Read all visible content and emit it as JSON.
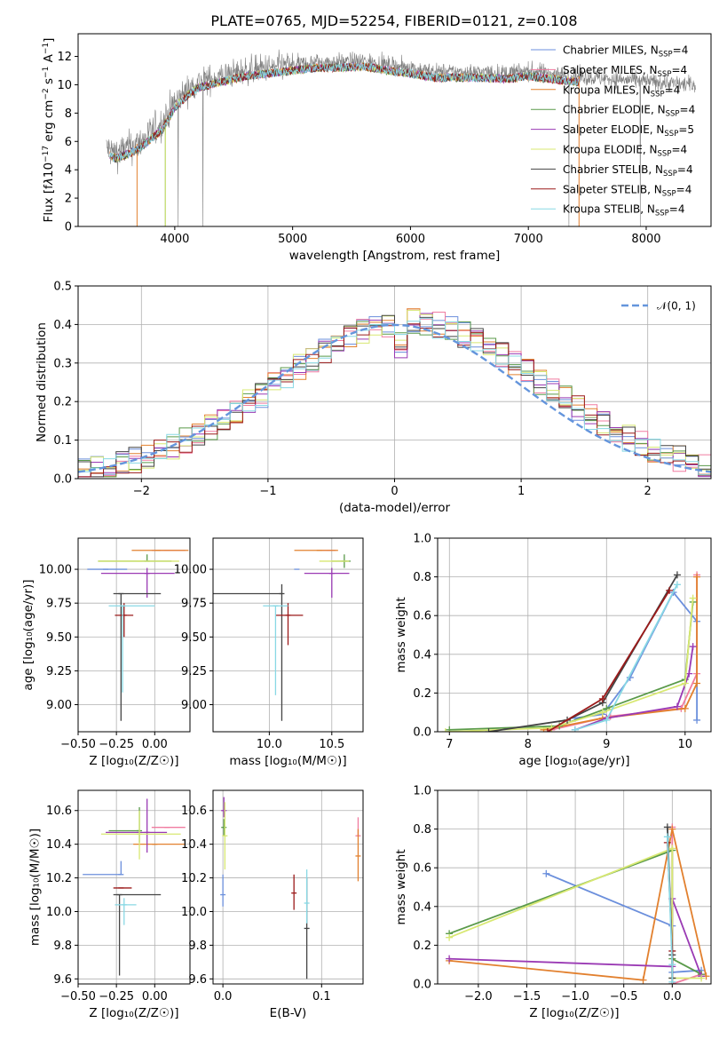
{
  "figure": {
    "title": "PLATE=0765, MJD=52254, FIBERID=0121, z=0.108"
  },
  "colors": {
    "Chabrier MILES": "#6b8fdc",
    "Salpeter MILES": "#f07ca0",
    "Kroupa MILES": "#e2802e",
    "Chabrier ELODIE": "#5a9a4a",
    "Salpeter ELODIE": "#9a3ab4",
    "Kroupa ELODIE": "#d8e872",
    "Chabrier STELIB": "#444444",
    "Salpeter STELIB": "#9b1a1a",
    "Kroupa STELIB": "#88d8e4",
    "data": "#808080",
    "normal": "#6495dc",
    "grid": "#b0b0b0"
  },
  "chart_data": [
    {
      "id": "spectrum",
      "type": "line",
      "title": "PLATE=0765, MJD=52254, FIBERID=0121, z=0.108",
      "xlabel": "wavelength [Angstrom, rest frame]",
      "ylabel_html": "Flux [f<tspan font-style='italic'>λ</tspan>10<tspan baseline-shift='super' font-size='9'>−17</tspan> erg cm<tspan baseline-shift='super' font-size='9'>−2</tspan> s<tspan baseline-shift='super' font-size='9'>−1</tspan> A<tspan baseline-shift='super' font-size='9'>−1</tspan>]",
      "xlim": [
        3180,
        8550
      ],
      "ylim": [
        0,
        13.6
      ],
      "xticks": [
        4000,
        5000,
        6000,
        7000,
        8000
      ],
      "yticks": [
        0,
        2,
        4,
        6,
        8,
        10,
        12
      ],
      "grid": false,
      "legend_placement": "right",
      "legend": [
        {
          "name": "Chabrier MILES",
          "nssp": "4"
        },
        {
          "name": "Salpeter MILES",
          "nssp": "4"
        },
        {
          "name": "Kroupa MILES",
          "nssp": "4"
        },
        {
          "name": "Chabrier ELODIE",
          "nssp": "4"
        },
        {
          "name": "Salpeter ELODIE",
          "nssp": "5"
        },
        {
          "name": "Kroupa ELODIE",
          "nssp": "4"
        },
        {
          "name": "Chabrier STELIB",
          "nssp": "4"
        },
        {
          "name": "Salpeter STELIB",
          "nssp": "4"
        },
        {
          "name": "Kroupa STELIB",
          "nssp": "4"
        }
      ],
      "continuum": {
        "x": [
          3420,
          3500,
          3600,
          3700,
          3800,
          3900,
          4000,
          4100,
          4200,
          4300,
          4400,
          4500,
          4600,
          4800,
          5000,
          5200,
          5400,
          5600,
          5800,
          6000,
          6200,
          6400,
          6600,
          6800,
          7000,
          7200,
          7400
        ],
        "y": [
          5.5,
          5.2,
          5.5,
          5.9,
          6.6,
          7.3,
          8.8,
          9.6,
          10.2,
          10.4,
          10.6,
          10.8,
          11.0,
          11.2,
          11.4,
          11.6,
          11.6,
          11.7,
          11.4,
          11.2,
          10.9,
          10.9,
          10.9,
          10.8,
          11.0,
          10.8,
          10.6
        ]
      },
      "data_range": [
        3420,
        8420
      ],
      "model_range": [
        3450,
        7430
      ]
    },
    {
      "id": "residuals",
      "type": "histogram",
      "xlabel": "(data-model)/error",
      "ylabel": "Normed distribution",
      "xlim": [
        -2.5,
        2.5
      ],
      "ylim": [
        0,
        0.5
      ],
      "xticks": [
        -2,
        -1,
        0,
        1,
        2
      ],
      "yticks": [
        0.0,
        0.1,
        0.2,
        0.3,
        0.4,
        0.5
      ],
      "grid": true,
      "legend_placement": "top-right",
      "legend_label": "𝒩(0, 1)",
      "bin_width": 0.1,
      "bin_start": -2.5
    },
    {
      "id": "age-Z",
      "type": "scatter",
      "xlabel": "Z [log₁₀(Z/Z☉)]",
      "ylabel": "age  [log₁₀(age/yr)]",
      "xlim": [
        -0.5,
        0.23
      ],
      "ylim": [
        8.8,
        10.23
      ],
      "xticks": [
        -0.5,
        -0.25,
        0.0
      ],
      "yticks": [
        9.0,
        9.25,
        9.5,
        9.75,
        10.0
      ],
      "grid": true,
      "points": [
        {
          "series": "Chabrier MILES",
          "x": -0.32,
          "xerr": [
            0.12,
            0.14
          ],
          "y": 10.0,
          "yerr": [
            0.0,
            0.0
          ]
        },
        {
          "series": "Salpeter MILES",
          "x": 0.08,
          "xerr": [
            0.1,
            0.12
          ],
          "y": 10.14,
          "yerr": [
            0.0,
            0.0
          ]
        },
        {
          "series": "Kroupa MILES",
          "x": 0.02,
          "xerr": [
            0.17,
            0.2
          ],
          "y": 10.14,
          "yerr": [
            0.0,
            0.0
          ]
        },
        {
          "series": "Chabrier ELODIE",
          "x": -0.05,
          "xerr": [
            0.32,
            0.16
          ],
          "y": 10.06,
          "yerr": [
            0.0,
            0.05
          ]
        },
        {
          "series": "Salpeter ELODIE",
          "x": -0.05,
          "xerr": [
            0.3,
            0.18
          ],
          "y": 9.97,
          "yerr": [
            0.18,
            0.04
          ]
        },
        {
          "series": "Kroupa ELODIE",
          "x": -0.1,
          "xerr": [
            0.27,
            0.26
          ],
          "y": 10.06,
          "yerr": [
            0.0,
            0.0
          ]
        },
        {
          "series": "Chabrier STELIB",
          "x": -0.22,
          "xerr": [
            0.05,
            0.26
          ],
          "y": 9.82,
          "yerr": [
            0.94,
            0.0
          ]
        },
        {
          "series": "Salpeter STELIB",
          "x": -0.2,
          "xerr": [
            0.06,
            0.06
          ],
          "y": 9.66,
          "yerr": [
            0.16,
            0.09
          ]
        },
        {
          "series": "Kroupa STELIB",
          "x": -0.21,
          "xerr": [
            0.09,
            0.21
          ],
          "y": 9.73,
          "yerr": [
            0.64,
            0.0
          ]
        }
      ]
    },
    {
      "id": "age-mass",
      "type": "scatter",
      "xlabel": "mass [log₁₀(M/M☉)]",
      "ylabel": "",
      "xlim": [
        9.55,
        10.75
      ],
      "ylim": [
        8.8,
        10.23
      ],
      "xticks": [
        10.0,
        10.5
      ],
      "yticks": [
        9.0,
        9.25,
        9.5,
        9.75,
        10.0
      ],
      "grid": true,
      "points": [
        {
          "series": "Chabrier MILES",
          "x": 10.22,
          "xerr": [
            0.0,
            0.0
          ],
          "y": 10.0,
          "yerr": [
            0.0,
            0.0
          ]
        },
        {
          "series": "Salpeter MILES",
          "x": 10.48,
          "xerr": [
            0.06,
            0.05
          ],
          "y": 10.14,
          "yerr": [
            0.0,
            0.0
          ]
        },
        {
          "series": "Kroupa MILES",
          "x": 10.4,
          "xerr": [
            0.2,
            0.15
          ],
          "y": 10.14,
          "yerr": [
            0.0,
            0.0
          ]
        },
        {
          "series": "Chabrier ELODIE",
          "x": 10.6,
          "xerr": [
            0.1,
            0.05
          ],
          "y": 10.06,
          "yerr": [
            0.05,
            0.05
          ]
        },
        {
          "series": "Salpeter ELODIE",
          "x": 10.5,
          "xerr": [
            0.22,
            0.14
          ],
          "y": 9.97,
          "yerr": [
            0.18,
            0.04
          ]
        },
        {
          "series": "Kroupa ELODIE",
          "x": 10.52,
          "xerr": [
            0.12,
            0.12
          ],
          "y": 10.06,
          "yerr": [
            0.0,
            0.0
          ]
        },
        {
          "series": "Chabrier STELIB",
          "x": 10.1,
          "xerr": [
            0.6,
            0.0
          ],
          "y": 9.82,
          "yerr": [
            0.94,
            0.07
          ]
        },
        {
          "series": "Salpeter STELIB",
          "x": 10.15,
          "xerr": [
            0.1,
            0.12
          ],
          "y": 9.66,
          "yerr": [
            0.22,
            0.09
          ]
        },
        {
          "series": "Kroupa STELIB",
          "x": 10.05,
          "xerr": [
            0.1,
            0.1
          ],
          "y": 9.73,
          "yerr": [
            0.66,
            0.0
          ]
        }
      ]
    },
    {
      "id": "mass-weight-age",
      "type": "line",
      "xlabel": "age  [log₁₀(age/yr)]",
      "ylabel": "mass weight",
      "xlim": [
        6.85,
        10.33
      ],
      "ylim": [
        0,
        1.0
      ],
      "xticks": [
        7,
        8,
        9,
        10
      ],
      "yticks": [
        0.0,
        0.2,
        0.4,
        0.6,
        0.8,
        1.0
      ],
      "grid": true,
      "series": [
        {
          "name": "Chabrier MILES",
          "x": [
            8.6,
            8.95,
            9.3,
            9.85,
            10.15,
            10.15
          ],
          "y": [
            0.07,
            0.09,
            0.28,
            0.72,
            0.57,
            0.06
          ]
        },
        {
          "name": "Salpeter MILES",
          "x": [
            8.3,
            9.05,
            9.95,
            10.15,
            10.15
          ],
          "y": [
            0.01,
            0.08,
            0.12,
            0.3,
            0.81
          ]
        },
        {
          "name": "Kroupa MILES",
          "x": [
            8.2,
            8.95,
            10.0,
            10.15,
            10.15
          ],
          "y": [
            0.01,
            0.07,
            0.12,
            0.25,
            0.8
          ]
        },
        {
          "name": "Chabrier ELODIE",
          "x": [
            7.0,
            8.4,
            9.0,
            10.0,
            10.1
          ],
          "y": [
            0.01,
            0.03,
            0.12,
            0.27,
            0.67
          ]
        },
        {
          "name": "Salpeter ELODIE",
          "x": [
            8.6,
            9.0,
            9.9,
            10.05,
            10.1
          ],
          "y": [
            0.01,
            0.07,
            0.13,
            0.3,
            0.44
          ]
        },
        {
          "name": "Kroupa ELODIE",
          "x": [
            6.95,
            8.3,
            8.95,
            10.0,
            10.1
          ],
          "y": [
            0.0,
            0.02,
            0.1,
            0.25,
            0.69
          ]
        },
        {
          "name": "Chabrier STELIB",
          "x": [
            7.5,
            8.5,
            8.95,
            9.9
          ],
          "y": [
            0.0,
            0.06,
            0.15,
            0.81
          ]
        },
        {
          "name": "Salpeter STELIB",
          "x": [
            8.25,
            8.95,
            9.8
          ],
          "y": [
            0.0,
            0.17,
            0.73
          ]
        },
        {
          "name": "Kroupa STELIB",
          "x": [
            8.6,
            9.0,
            9.9
          ],
          "y": [
            0.01,
            0.06,
            0.76
          ]
        }
      ]
    },
    {
      "id": "mass-Z",
      "type": "scatter",
      "xlabel": "Z [log₁₀(Z/Z☉)]",
      "ylabel": "mass [log₁₀(M/M☉)]",
      "xlim": [
        -0.5,
        0.23
      ],
      "ylim": [
        9.57,
        10.72
      ],
      "xticks": [
        -0.5,
        -0.25,
        0.0
      ],
      "yticks": [
        9.6,
        9.8,
        10.0,
        10.2,
        10.4,
        10.6
      ],
      "grid": true,
      "points": [
        {
          "series": "Chabrier MILES",
          "x": -0.22,
          "xerr": [
            0.25,
            0.0
          ],
          "y": 10.22,
          "yerr": [
            0.0,
            0.08
          ]
        },
        {
          "series": "Salpeter MILES",
          "x": 0.08,
          "xerr": [
            0.1,
            0.12
          ],
          "y": 10.5,
          "yerr": [
            0.0,
            0.0
          ]
        },
        {
          "series": "Kroupa MILES",
          "x": 0.0,
          "xerr": [
            0.14,
            0.2
          ],
          "y": 10.4,
          "yerr": [
            0.0,
            0.0
          ]
        },
        {
          "series": "Chabrier ELODIE",
          "x": -0.1,
          "xerr": [
            0.2,
            0.0
          ],
          "y": 10.48,
          "yerr": [
            0.07,
            0.14
          ]
        },
        {
          "series": "Salpeter ELODIE",
          "x": -0.05,
          "xerr": [
            0.27,
            0.13
          ],
          "y": 10.47,
          "yerr": [
            0.12,
            0.2
          ]
        },
        {
          "series": "Kroupa ELODIE",
          "x": -0.1,
          "xerr": [
            0.25,
            0.27
          ],
          "y": 10.46,
          "yerr": [
            0.15,
            0.14
          ]
        },
        {
          "series": "Chabrier STELIB",
          "x": -0.23,
          "xerr": [
            0.04,
            0.27
          ],
          "y": 10.1,
          "yerr": [
            0.48,
            0.0
          ]
        },
        {
          "series": "Salpeter STELIB",
          "x": -0.22,
          "xerr": [
            0.05,
            0.07
          ],
          "y": 10.14,
          "yerr": [
            0.0,
            0.0
          ]
        },
        {
          "series": "Kroupa STELIB",
          "x": -0.2,
          "xerr": [
            0.06,
            0.08
          ],
          "y": 10.04,
          "yerr": [
            0.12,
            0.04
          ]
        }
      ]
    },
    {
      "id": "mass-EBV",
      "type": "scatter",
      "xlabel": "E(B-V)",
      "ylabel": "",
      "xlim": [
        -0.01,
        0.142
      ],
      "ylim": [
        9.57,
        10.72
      ],
      "xticks": [
        0.0,
        0.1
      ],
      "yticks": [
        9.6,
        9.8,
        10.0,
        10.2,
        10.4,
        10.6
      ],
      "grid": true,
      "points": [
        {
          "series": "Chabrier MILES",
          "x": 0.0,
          "xerr": [
            0.0,
            0.0
          ],
          "y": 10.1,
          "yerr": [
            0.07,
            0.12
          ]
        },
        {
          "series": "Salpeter MILES",
          "x": 0.137,
          "xerr": [
            0.0,
            0.0
          ],
          "y": 10.45,
          "yerr": [
            0.0,
            0.11
          ]
        },
        {
          "series": "Kroupa MILES",
          "x": 0.137,
          "xerr": [
            0.0,
            0.0
          ],
          "y": 10.33,
          "yerr": [
            0.15,
            0.16
          ]
        },
        {
          "series": "Chabrier ELODIE",
          "x": 0.001,
          "xerr": [
            0.0,
            0.0
          ],
          "y": 10.5,
          "yerr": [
            0.05,
            0.05
          ]
        },
        {
          "series": "Salpeter ELODIE",
          "x": 0.001,
          "xerr": [
            0.0,
            0.0
          ],
          "y": 10.6,
          "yerr": [
            0.04,
            0.08
          ]
        },
        {
          "series": "Kroupa ELODIE",
          "x": 0.002,
          "xerr": [
            0.0,
            0.0
          ],
          "y": 10.45,
          "yerr": [
            0.2,
            0.2
          ]
        },
        {
          "series": "Chabrier STELIB",
          "x": 0.085,
          "xerr": [
            0.0,
            0.0
          ],
          "y": 9.9,
          "yerr": [
            0.3,
            0.3
          ]
        },
        {
          "series": "Salpeter STELIB",
          "x": 0.072,
          "xerr": [
            0.0,
            0.0
          ],
          "y": 10.11,
          "yerr": [
            0.1,
            0.11
          ]
        },
        {
          "series": "Kroupa STELIB",
          "x": 0.085,
          "xerr": [
            0.0,
            0.0
          ],
          "y": 10.05,
          "yerr": [
            0.12,
            0.2
          ]
        }
      ]
    },
    {
      "id": "mass-weight-Z",
      "type": "line",
      "xlabel": "Z [log₁₀(Z/Z☉)]",
      "ylabel": "mass weight",
      "xlim": [
        -2.42,
        0.4
      ],
      "ylim": [
        0,
        1.0
      ],
      "xticks": [
        -2.0,
        -1.5,
        -1.0,
        -0.5,
        0.0
      ],
      "yticks": [
        0.0,
        0.2,
        0.4,
        0.6,
        0.8,
        1.0
      ],
      "grid": true,
      "series": [
        {
          "name": "Chabrier MILES",
          "x": [
            -1.3,
            0.0,
            0.0,
            0.3
          ],
          "y": [
            0.57,
            0.3,
            0.06,
            0.07
          ]
        },
        {
          "name": "Salpeter MILES",
          "x": [
            0.0,
            0.0,
            0.3,
            0.3
          ],
          "y": [
            0.81,
            0.0,
            0.05,
            0.05
          ]
        },
        {
          "name": "Kroupa MILES",
          "x": [
            -2.3,
            -0.3,
            0.0,
            0.35
          ],
          "y": [
            0.12,
            0.02,
            0.8,
            0.04
          ]
        },
        {
          "name": "Chabrier ELODIE",
          "x": [
            -2.3,
            0.0,
            0.0,
            0.3
          ],
          "y": [
            0.26,
            0.69,
            0.13,
            0.05
          ]
        },
        {
          "name": "Salpeter ELODIE",
          "x": [
            -2.3,
            0.0,
            0.0,
            0.3
          ],
          "y": [
            0.13,
            0.09,
            0.44,
            0.04
          ]
        },
        {
          "name": "Kroupa ELODIE",
          "x": [
            -2.3,
            0.0,
            0.0,
            0.3
          ],
          "y": [
            0.24,
            0.7,
            0.03,
            0.03
          ]
        },
        {
          "name": "Chabrier STELIB",
          "x": [
            -0.05,
            0.0,
            0.0
          ],
          "y": [
            0.81,
            0.15,
            0.03
          ]
        },
        {
          "name": "Salpeter STELIB",
          "x": [
            -0.05,
            0.0,
            0.0
          ],
          "y": [
            0.73,
            0.17,
            0.0
          ]
        },
        {
          "name": "Kroupa STELIB",
          "x": [
            -0.05,
            0.0,
            0.0
          ],
          "y": [
            0.76,
            0.1,
            0.01
          ]
        }
      ]
    }
  ]
}
